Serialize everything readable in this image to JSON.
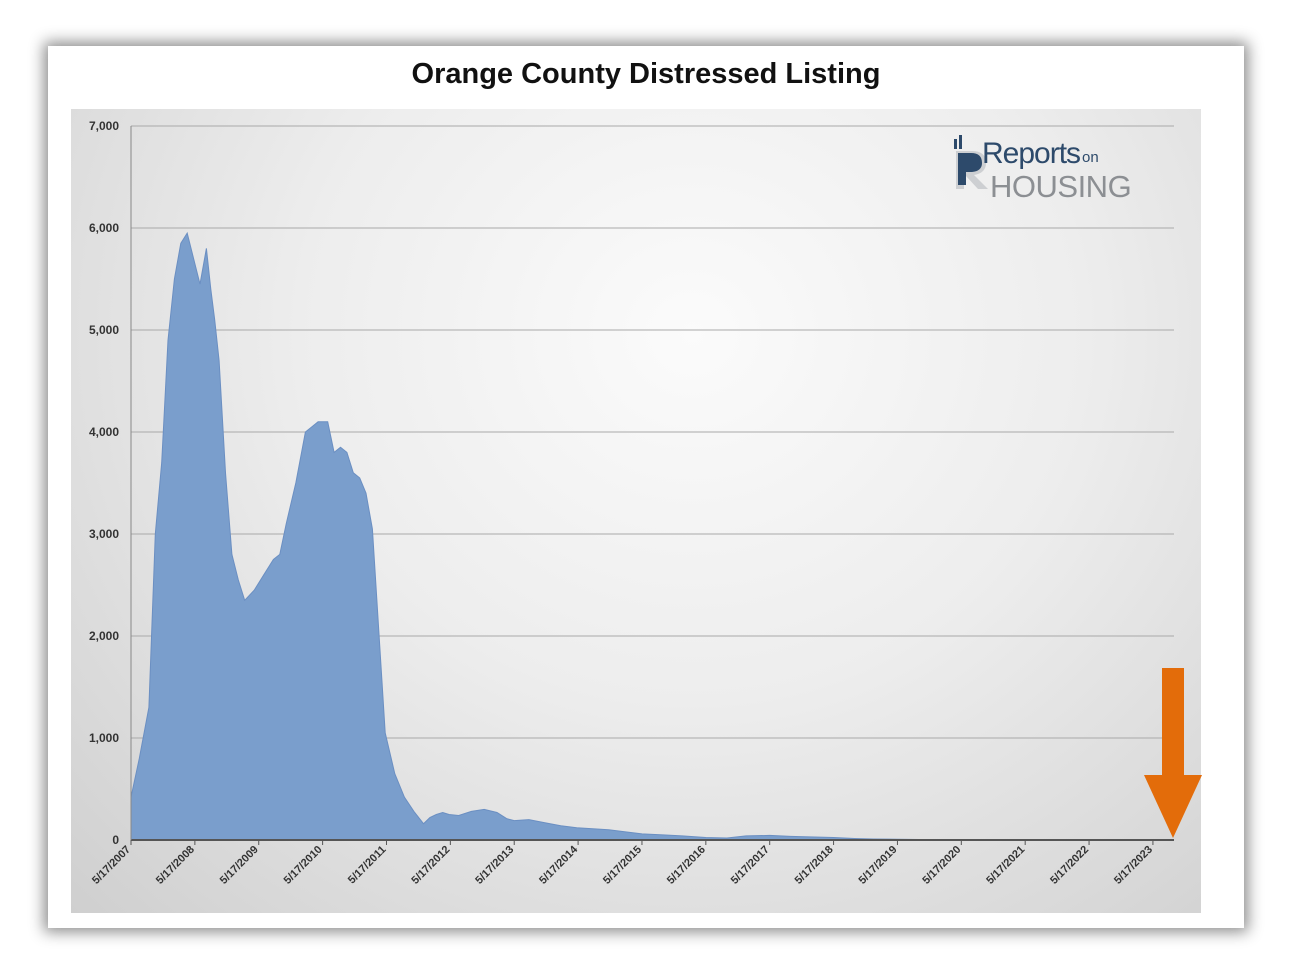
{
  "chart_data": {
    "type": "area",
    "title": "Orange County Distressed Listing",
    "xlabel": "",
    "ylabel": "",
    "ylim": [
      0,
      7000
    ],
    "y_ticks": [
      "0",
      "1,000",
      "2,000",
      "3,000",
      "4,000",
      "5,000",
      "6,000",
      "7,000"
    ],
    "y_tick_values": [
      0,
      1000,
      2000,
      3000,
      4000,
      5000,
      6000,
      7000
    ],
    "x_ticks": [
      "5/17/2007",
      "5/17/2008",
      "5/17/2009",
      "5/17/2010",
      "5/17/2011",
      "5/17/2012",
      "5/17/2013",
      "5/17/2014",
      "5/17/2015",
      "5/17/2016",
      "5/17/2017",
      "5/17/2018",
      "5/17/2019",
      "5/17/2020",
      "5/17/2021",
      "5/17/2022",
      "5/17/2023"
    ],
    "x_tick_values": [
      2007.37,
      2008.37,
      2009.37,
      2010.37,
      2011.37,
      2012.37,
      2013.37,
      2014.37,
      2015.37,
      2016.37,
      2017.37,
      2018.37,
      2019.37,
      2020.37,
      2021.37,
      2022.37,
      2023.37
    ],
    "xlim": [
      2007.37,
      2023.7
    ],
    "grid": true,
    "x": [
      2007.37,
      2007.5,
      2007.65,
      2007.75,
      2007.85,
      2007.95,
      2008.05,
      2008.15,
      2008.25,
      2008.35,
      2008.45,
      2008.55,
      2008.62,
      2008.68,
      2008.75,
      2008.85,
      2008.95,
      2009.05,
      2009.15,
      2009.3,
      2009.45,
      2009.6,
      2009.7,
      2009.8,
      2009.95,
      2010.1,
      2010.2,
      2010.3,
      2010.45,
      2010.55,
      2010.65,
      2010.75,
      2010.85,
      2010.95,
      2011.05,
      2011.15,
      2011.25,
      2011.35,
      2011.5,
      2011.65,
      2011.8,
      2011.95,
      2012.05,
      2012.15,
      2012.25,
      2012.35,
      2012.5,
      2012.7,
      2012.9,
      2013.1,
      2013.25,
      2013.37,
      2013.6,
      2013.85,
      2014.1,
      2014.35,
      2014.6,
      2014.85,
      2015.1,
      2015.37,
      2015.7,
      2016.0,
      2016.37,
      2016.7,
      2017.0,
      2017.37,
      2017.7,
      2018.0,
      2018.37,
      2018.7,
      2019.0,
      2019.37,
      2019.7,
      2020.0,
      2020.37,
      2020.7,
      2021.0,
      2021.37,
      2022.0,
      2022.37,
      2023.0,
      2023.37
    ],
    "series": [
      {
        "values": [
          420,
          800,
          1300,
          3000,
          3700,
          4900,
          5500,
          5850,
          5950,
          5700,
          5450,
          5800,
          5400,
          5100,
          4700,
          3600,
          2800,
          2550,
          2350,
          2450,
          2600,
          2750,
          2800,
          3100,
          3500,
          4000,
          4050,
          4100,
          4100,
          3800,
          3850,
          3800,
          3600,
          3550,
          3400,
          3050,
          2050,
          1050,
          650,
          420,
          280,
          160,
          220,
          250,
          270,
          250,
          240,
          280,
          300,
          270,
          210,
          190,
          200,
          170,
          140,
          120,
          110,
          100,
          80,
          60,
          50,
          40,
          25,
          20,
          40,
          45,
          35,
          30,
          25,
          15,
          10,
          8,
          5,
          5,
          4,
          3,
          3,
          3,
          2,
          2,
          2,
          2
        ]
      }
    ],
    "colors": {
      "area": "#7a9ecc",
      "area_line": "#6b8fc2",
      "arrow": "#e36c0a"
    },
    "annotations": [
      "orange-down-arrow-at-2023-end"
    ]
  },
  "logo": {
    "line1": "Reports",
    "line1_small": "on",
    "line2": "HOUSING"
  }
}
